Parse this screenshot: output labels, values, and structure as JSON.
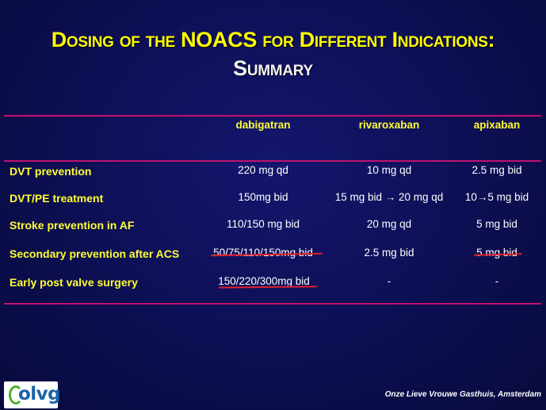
{
  "title": {
    "line1": "Dosing of the NOACS for Different Indications:",
    "line2": "Summary"
  },
  "table": {
    "headers": [
      "dabigatran",
      "rivaroxaban",
      "apixaban"
    ],
    "rows": [
      {
        "label": "DVT prevention",
        "values": [
          "220 mg qd",
          "10 mg qd",
          "2.5 mg bid"
        ]
      },
      {
        "label": "DVT/PE  treatment",
        "values": [
          "150mg bid",
          "15 mg bid → 20 mg qd",
          "10→5 mg bid"
        ]
      },
      {
        "label": "Stroke prevention in AF",
        "values": [
          "110/150 mg bid",
          "20 mg qd",
          "5 mg bid"
        ]
      },
      {
        "label": "Secondary prevention after ACS",
        "values": [
          "50/75/110/150mg bid",
          "2.5 mg bid",
          "5 mg bid"
        ]
      },
      {
        "label": "Early post  valve surgery",
        "values": [
          "150/220/300mg bid",
          "-",
          "-"
        ]
      }
    ]
  },
  "footer": {
    "logo_text": "olvg",
    "institution": "Onze Lieve Vrouwe Gasthuis, Amsterdam"
  },
  "colors": {
    "background": "#0e1058",
    "title": "#ffff00",
    "rule": "#c0126d",
    "strike": "#e0202a"
  }
}
